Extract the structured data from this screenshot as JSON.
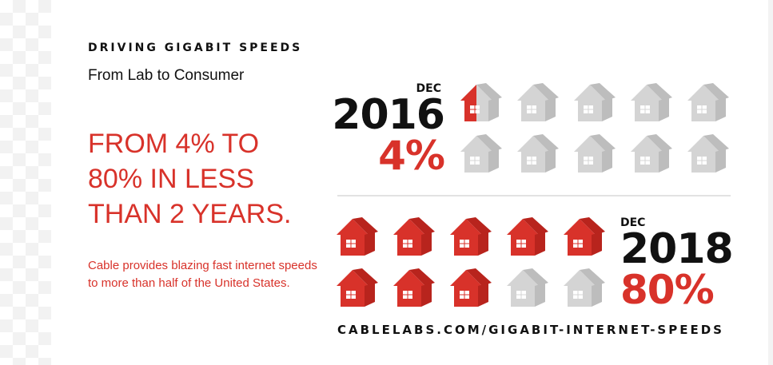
{
  "kicker": "DRIVING GIGABIT SPEEDS",
  "subtitle": "From Lab to Consumer",
  "headline": "FROM 4% TO\n80% IN LESS\nTHAN 2 YEARS.",
  "body": "Cable provides blazing fast internet speeds to more than half of the United States.",
  "colors": {
    "red": "#d8322a",
    "dark_red": "#b8241d",
    "gray": "#d4d4d4",
    "gray_dark": "#bdbdbd",
    "text": "#111111"
  },
  "stat_2016": {
    "month": "DEC",
    "year": "2016",
    "percent": "4%",
    "houses_total": 10,
    "houses_filled": 0.5
  },
  "stat_2018": {
    "month": "DEC",
    "year": "2018",
    "percent": "80%",
    "houses_total": 10,
    "houses_filled": 8
  },
  "footer_url": "CABLELABS.COM/GIGABIT-INTERNET-SPEEDS",
  "icon": "house-icon"
}
